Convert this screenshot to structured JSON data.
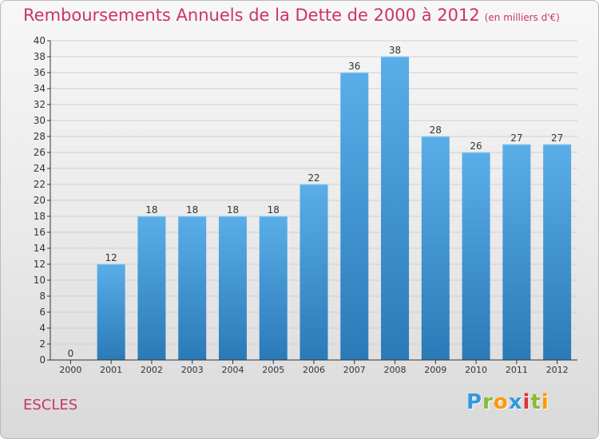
{
  "title": "Remboursements Annuels de la Dette de 2000 à 2012",
  "unit": "(en milliers d'€)",
  "commune": "ESCLES",
  "logo": {
    "letters": [
      {
        "char": "P",
        "color": "#3399dd"
      },
      {
        "char": "r",
        "color": "#88bb33"
      },
      {
        "char": "o",
        "color": "#ff9900"
      },
      {
        "char": "x",
        "color": "#3399dd"
      },
      {
        "char": "i",
        "color": "#dd3333"
      },
      {
        "char": "t",
        "color": "#88bb33"
      },
      {
        "char": "i",
        "color": "#ff9900"
      }
    ]
  },
  "colors": {
    "title": "#cc3366",
    "bar_top": "#5aaee8",
    "bar_bottom": "#2a7ab8",
    "axis": "#333333",
    "grid": "#cfcfcf"
  },
  "chart_data": {
    "type": "bar",
    "categories": [
      "2000",
      "2001",
      "2002",
      "2003",
      "2004",
      "2005",
      "2006",
      "2007",
      "2008",
      "2009",
      "2010",
      "2011",
      "2012"
    ],
    "values": [
      0,
      12,
      18,
      18,
      18,
      18,
      22,
      36,
      38,
      28,
      26,
      27,
      27
    ],
    "data_labels": [
      "0",
      "12",
      "18",
      "18",
      "18",
      "18",
      "22",
      "36",
      "38",
      "28",
      "26",
      "27",
      "27"
    ],
    "ylim": [
      0,
      40
    ],
    "yticks": [
      0,
      2,
      4,
      6,
      8,
      10,
      12,
      14,
      16,
      18,
      20,
      22,
      24,
      26,
      28,
      30,
      32,
      34,
      36,
      38,
      40
    ],
    "grid": true,
    "xlabel": "",
    "ylabel": ""
  }
}
